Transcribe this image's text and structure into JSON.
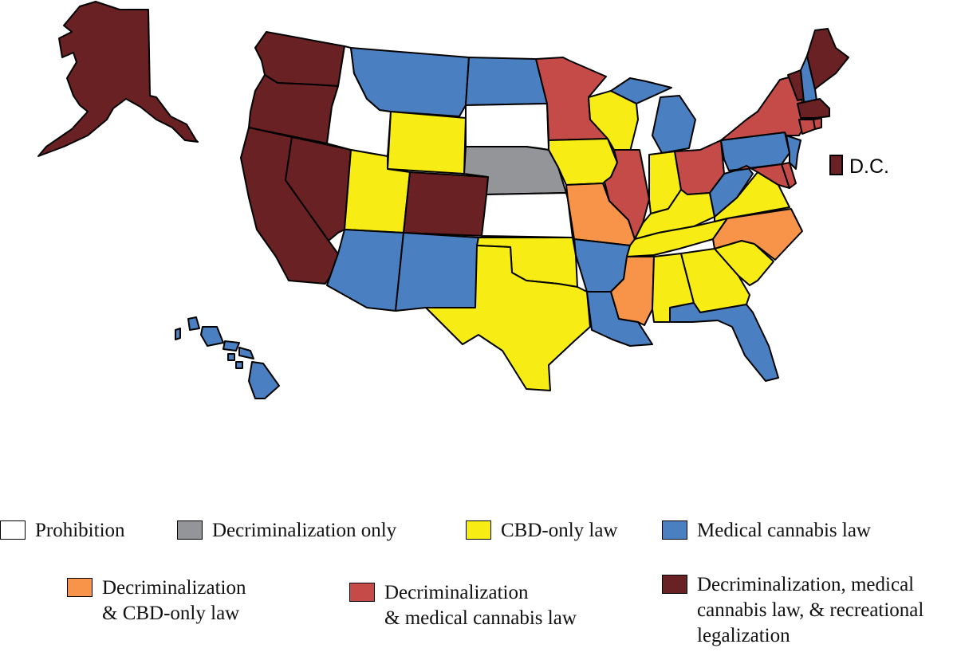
{
  "colors": {
    "prohibition": "#ffffff",
    "decrim_only": "#939598",
    "cbd_only": "#f7ec13",
    "medical": "#4a80c1",
    "decrim_cbd": "#f7944a",
    "decrim_medical": "#c54b49",
    "full": "#6a2123"
  },
  "dc": {
    "label": "D.C.",
    "category": "full"
  },
  "legend": [
    {
      "key": "prohibition",
      "lines": [
        "Prohibition"
      ]
    },
    {
      "key": "decrim_only",
      "lines": [
        "Decriminalization only"
      ]
    },
    {
      "key": "cbd_only",
      "lines": [
        "CBD-only law"
      ]
    },
    {
      "key": "medical",
      "lines": [
        "Medical cannabis law"
      ]
    },
    {
      "key": "decrim_cbd",
      "lines": [
        "Decriminalization",
        "& CBD-only law"
      ]
    },
    {
      "key": "decrim_medical",
      "lines": [
        "Decriminalization",
        "& medical cannabis law"
      ]
    },
    {
      "key": "full",
      "lines": [
        "Decriminalization, medical",
        "cannabis law, & recreational",
        "legalization"
      ]
    }
  ],
  "states": {
    "AK": "full",
    "WA": "full",
    "OR": "full",
    "CA": "full",
    "NV": "full",
    "CO": "full",
    "ME": "full",
    "VT": "full",
    "MA": "full",
    "ID": "prohibition",
    "SD": "prohibition",
    "KS": "prohibition",
    "NE": "decrim_only",
    "WY": "cbd_only",
    "UT": "cbd_only",
    "IA": "cbd_only",
    "WI": "cbd_only",
    "IN": "cbd_only",
    "KY": "cbd_only",
    "TN": "cbd_only",
    "OK": "cbd_only",
    "TX": "cbd_only",
    "AL": "cbd_only",
    "GA": "cbd_only",
    "SC": "cbd_only",
    "VA": "cbd_only",
    "MT": "medical",
    "ND": "medical",
    "AZ": "medical",
    "NM": "medical",
    "AR": "medical",
    "LA": "medical",
    "MI": "medical",
    "FL": "medical",
    "PA": "medical",
    "NJ": "medical",
    "WV": "medical",
    "HI": "medical",
    "NH": "medical",
    "MO": "decrim_cbd",
    "MS": "decrim_cbd",
    "NC": "decrim_cbd",
    "MN": "decrim_medical",
    "IL": "decrim_medical",
    "OH": "decrim_medical",
    "NY": "decrim_medical",
    "MD": "decrim_medical",
    "DE": "decrim_medical",
    "CT": "decrim_medical",
    "RI": "decrim_medical"
  }
}
